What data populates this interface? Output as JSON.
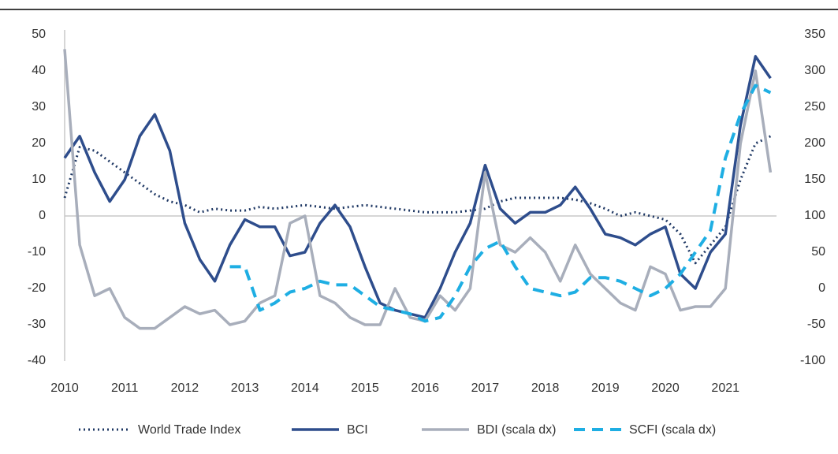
{
  "chart_data": {
    "type": "line",
    "x": [
      2010,
      2010.25,
      2010.5,
      2010.75,
      2011,
      2011.25,
      2011.5,
      2011.75,
      2012,
      2012.25,
      2012.5,
      2012.75,
      2013,
      2013.25,
      2013.5,
      2013.75,
      2014,
      2014.25,
      2014.5,
      2014.75,
      2015,
      2015.25,
      2015.5,
      2015.75,
      2016,
      2016.25,
      2016.5,
      2016.75,
      2017,
      2017.25,
      2017.5,
      2017.75,
      2018,
      2018.25,
      2018.5,
      2018.75,
      2019,
      2019.25,
      2019.5,
      2019.75,
      2020,
      2020.25,
      2020.5,
      2020.75,
      2021,
      2021.25,
      2021.5,
      2021.75
    ],
    "series": [
      {
        "name": "World Trade Index",
        "color": "#1f3864",
        "dash": "dot",
        "values": [
          5,
          19,
          18,
          15,
          12,
          9,
          6,
          4,
          3,
          1,
          2,
          1.5,
          1.5,
          2.5,
          2,
          2.5,
          3,
          2.5,
          2,
          2.5,
          3,
          2.5,
          2,
          1.5,
          1,
          1,
          1,
          1.5,
          2,
          4,
          5,
          5,
          5,
          5,
          4.5,
          3.5,
          2,
          0,
          1,
          0,
          -1,
          -5,
          -13,
          -8,
          -3,
          10,
          20,
          22
        ]
      },
      {
        "name": "BCI",
        "color": "#2e4d8c",
        "dash": "solid",
        "values": [
          16,
          22,
          12,
          4,
          10,
          22,
          28,
          18,
          -2,
          -12,
          -18,
          -8,
          -1,
          -3,
          -3,
          -11,
          -10,
          -2,
          3,
          -3,
          -14,
          -24,
          -26,
          -27,
          -28,
          -20,
          -10,
          -2,
          14,
          2,
          -2,
          1,
          1,
          3,
          8,
          2,
          -5,
          -6,
          -8,
          -5,
          -3,
          -16,
          -20,
          -10,
          -5,
          25,
          44,
          38
        ]
      },
      {
        "name": "BDI (scala dx)",
        "color": "#a8aebb",
        "dash": "solid",
        "axis": "y2",
        "values": [
          330,
          60,
          -10,
          0,
          -40,
          -55,
          -55,
          -40,
          -25,
          -35,
          -30,
          -50,
          -45,
          -20,
          -10,
          90,
          100,
          -10,
          -20,
          -40,
          -50,
          -50,
          0,
          -40,
          -45,
          -10,
          -30,
          0,
          160,
          60,
          50,
          70,
          50,
          10,
          60,
          20,
          0,
          -20,
          -30,
          30,
          20,
          -30,
          -25,
          -25,
          0,
          200,
          300,
          160
        ]
      },
      {
        "name": "SCFI (scala dx)",
        "color": "#1eaee3",
        "dash": "dash",
        "axis": "y2",
        "values": [
          null,
          null,
          null,
          null,
          null,
          null,
          null,
          null,
          null,
          null,
          null,
          30,
          30,
          -30,
          -20,
          -5,
          0,
          10,
          5,
          5,
          -10,
          -25,
          -30,
          -35,
          -45,
          -40,
          -10,
          30,
          55,
          65,
          30,
          0,
          -5,
          -10,
          -5,
          15,
          15,
          10,
          0,
          -10,
          0,
          20,
          50,
          80,
          180,
          240,
          280,
          270
        ]
      }
    ],
    "xlim": [
      2010,
      2021.85
    ],
    "xticks": [
      2010,
      2011,
      2012,
      2013,
      2014,
      2015,
      2016,
      2017,
      2018,
      2019,
      2020,
      2021
    ],
    "ylim": [
      -40,
      50
    ],
    "yticks": [
      50,
      40,
      30,
      20,
      10,
      0,
      -10,
      -20,
      -30,
      -40
    ],
    "y2lim": [
      -100,
      350
    ],
    "y2ticks": [
      350,
      300,
      250,
      200,
      150,
      100,
      50,
      0,
      -50,
      -100
    ]
  }
}
